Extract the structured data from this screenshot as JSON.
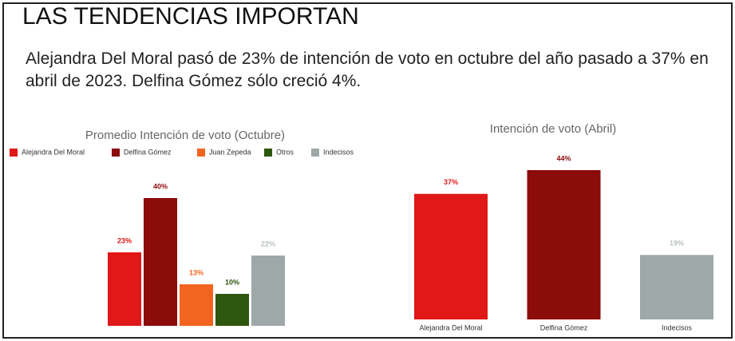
{
  "title": "LAS TENDENCIAS IMPORTAN",
  "subtitle": "Alejandra Del Moral pasó de 23% de intención de voto en octubre del año pasado a 37% en abril de 2023. Delfina Gómez sólo creció 4%.",
  "chart_data": [
    {
      "type": "bar",
      "title": "Promedio Intención de voto (Octubre)",
      "categories": [
        "Alejandra Del Moral",
        "Delfina Gómez",
        "Juan Zepeda",
        "Otros",
        "Indecisos"
      ],
      "values": [
        23,
        40,
        13,
        10,
        22
      ],
      "value_labels": [
        "23%",
        "40%",
        "13%",
        "10%",
        "22%"
      ],
      "colors": [
        "#e01818",
        "#8c0b0b",
        "#f2641f",
        "#2e560f",
        "#9ea8a8"
      ],
      "legend": true
    },
    {
      "type": "bar",
      "title": "Intención de voto (Abril)",
      "categories": [
        "Alejandra Del Moral",
        "Delfina Gómez",
        "Indecisos"
      ],
      "values": [
        37,
        44,
        19
      ],
      "value_labels": [
        "37%",
        "44%",
        "19%"
      ],
      "colors": [
        "#e01818",
        "#8c0b0b",
        "#9ea8a8"
      ],
      "legend": false
    }
  ]
}
